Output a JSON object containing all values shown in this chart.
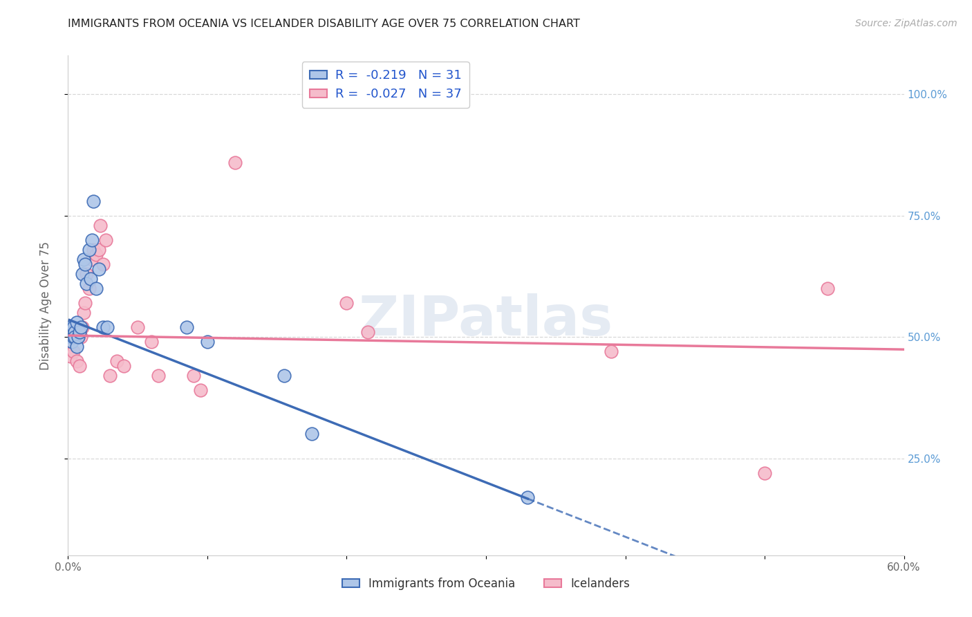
{
  "title": "IMMIGRANTS FROM OCEANIA VS ICELANDER DISABILITY AGE OVER 75 CORRELATION CHART",
  "source": "Source: ZipAtlas.com",
  "ylabel": "Disability Age Over 75",
  "right_yticks": [
    "100.0%",
    "75.0%",
    "50.0%",
    "25.0%"
  ],
  "right_ytick_vals": [
    1.0,
    0.75,
    0.5,
    0.25
  ],
  "xlim": [
    0.0,
    0.6
  ],
  "ylim": [
    0.05,
    1.08
  ],
  "legend_blue_label": "R =  -0.219   N = 31",
  "legend_pink_label": "R =  -0.027   N = 37",
  "legend_bottom_blue": "Immigrants from Oceania",
  "legend_bottom_pink": "Icelanders",
  "blue_scatter_x": [
    0.001,
    0.002,
    0.002,
    0.003,
    0.003,
    0.004,
    0.004,
    0.005,
    0.005,
    0.006,
    0.006,
    0.007,
    0.008,
    0.009,
    0.01,
    0.011,
    0.012,
    0.013,
    0.015,
    0.016,
    0.017,
    0.018,
    0.02,
    0.022,
    0.025,
    0.028,
    0.085,
    0.1,
    0.155,
    0.175,
    0.33
  ],
  "blue_scatter_y": [
    0.51,
    0.5,
    0.52,
    0.49,
    0.51,
    0.5,
    0.52,
    0.51,
    0.5,
    0.53,
    0.48,
    0.5,
    0.51,
    0.52,
    0.63,
    0.66,
    0.65,
    0.61,
    0.68,
    0.62,
    0.7,
    0.78,
    0.6,
    0.64,
    0.52,
    0.52,
    0.52,
    0.49,
    0.42,
    0.3,
    0.17
  ],
  "pink_scatter_x": [
    0.001,
    0.002,
    0.002,
    0.003,
    0.004,
    0.005,
    0.006,
    0.006,
    0.007,
    0.008,
    0.009,
    0.01,
    0.011,
    0.012,
    0.013,
    0.015,
    0.017,
    0.018,
    0.02,
    0.022,
    0.023,
    0.025,
    0.027,
    0.03,
    0.035,
    0.04,
    0.05,
    0.06,
    0.065,
    0.09,
    0.095,
    0.12,
    0.2,
    0.215,
    0.39,
    0.5,
    0.545
  ],
  "pink_scatter_y": [
    0.49,
    0.48,
    0.46,
    0.5,
    0.47,
    0.5,
    0.45,
    0.51,
    0.5,
    0.44,
    0.5,
    0.52,
    0.55,
    0.57,
    0.63,
    0.6,
    0.66,
    0.68,
    0.67,
    0.68,
    0.73,
    0.65,
    0.7,
    0.42,
    0.45,
    0.44,
    0.52,
    0.49,
    0.42,
    0.42,
    0.39,
    0.86,
    0.57,
    0.51,
    0.47,
    0.22,
    0.6
  ],
  "blue_color": "#aec6e8",
  "pink_color": "#f5bccb",
  "blue_line_color": "#3d6bb5",
  "pink_line_color": "#e8799a",
  "right_axis_color": "#5b9bd5",
  "watermark_text": "ZIPatlas",
  "background_color": "#ffffff",
  "grid_color": "#d8d8d8",
  "blue_line_x0": 0.001,
  "blue_line_x_solid_end": 0.33,
  "blue_line_x_dash_end": 0.6,
  "blue_line_y0": 0.535,
  "blue_line_slope": -1.12,
  "pink_line_x0": 0.001,
  "pink_line_x_end": 0.6,
  "pink_line_y0": 0.503,
  "pink_line_slope": -0.048
}
